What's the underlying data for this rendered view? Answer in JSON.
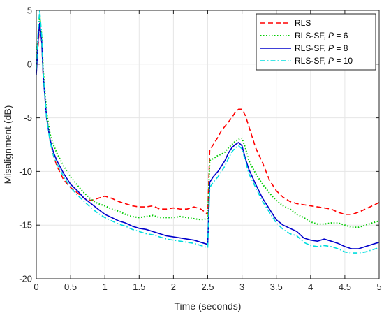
{
  "chart_data": {
    "type": "line",
    "xlabel": "Time (seconds)",
    "ylabel": "Misalignment (dB)",
    "xlim": [
      0,
      5
    ],
    "ylim": [
      -20,
      5
    ],
    "grid": true,
    "legend_position": "top-right",
    "x_ticks": [
      0,
      0.5,
      1,
      1.5,
      2,
      2.5,
      3,
      3.5,
      4,
      4.5,
      5
    ],
    "x_tick_labels": [
      "0",
      "0.5",
      "1",
      "1.5",
      "2",
      "2.5",
      "3",
      "3.5",
      "4",
      "4.5",
      "5"
    ],
    "y_ticks": [
      5,
      0,
      -5,
      -10,
      -15,
      -20
    ],
    "y_tick_labels": [
      "5",
      "0",
      "-5",
      "-10",
      "-15",
      "-20"
    ],
    "legend_entries": [
      {
        "prefix": "RLS",
        "param": "",
        "suffix": ""
      },
      {
        "prefix": "RLS-SF, ",
        "param": "P",
        "suffix": " = 6"
      },
      {
        "prefix": "RLS-SF, ",
        "param": "P",
        "suffix": " = 8"
      },
      {
        "prefix": "RLS-SF, ",
        "param": "P",
        "suffix": " = 10"
      }
    ],
    "series": [
      {
        "name": "RLS",
        "color": "#ff0000",
        "dash": "dashed",
        "x": [
          0,
          0.03,
          0.05,
          0.08,
          0.1,
          0.15,
          0.2,
          0.25,
          0.3,
          0.4,
          0.5,
          0.6,
          0.7,
          0.8,
          0.9,
          1.0,
          1.1,
          1.2,
          1.3,
          1.4,
          1.5,
          1.6,
          1.7,
          1.8,
          1.9,
          2.0,
          2.1,
          2.2,
          2.3,
          2.4,
          2.5,
          2.53,
          2.58,
          2.65,
          2.7,
          2.75,
          2.8,
          2.85,
          2.9,
          2.95,
          3.0,
          3.05,
          3.1,
          3.2,
          3.3,
          3.4,
          3.5,
          3.6,
          3.7,
          3.8,
          3.9,
          4.0,
          4.1,
          4.2,
          4.3,
          4.4,
          4.5,
          4.6,
          4.7,
          4.8,
          4.9,
          5.0
        ],
        "y": [
          -0.5,
          2.0,
          3.8,
          2.0,
          -1.0,
          -5.0,
          -7.0,
          -8.5,
          -9.5,
          -10.8,
          -11.5,
          -12.0,
          -12.5,
          -12.7,
          -12.5,
          -12.3,
          -12.5,
          -12.8,
          -13.0,
          -13.2,
          -13.3,
          -13.3,
          -13.2,
          -13.5,
          -13.5,
          -13.4,
          -13.5,
          -13.5,
          -13.3,
          -13.5,
          -14.0,
          -8.0,
          -7.5,
          -6.8,
          -6.2,
          -5.8,
          -5.4,
          -5.0,
          -4.5,
          -4.2,
          -4.2,
          -4.8,
          -5.8,
          -7.8,
          -9.2,
          -10.8,
          -11.8,
          -12.4,
          -12.8,
          -13.0,
          -13.1,
          -13.2,
          -13.3,
          -13.4,
          -13.5,
          -13.8,
          -14.0,
          -14.0,
          -13.8,
          -13.5,
          -13.2,
          -12.9
        ]
      },
      {
        "name": "RLS-SF, P = 6",
        "color": "#00cc00",
        "dash": "dotted",
        "x": [
          0,
          0.03,
          0.05,
          0.08,
          0.1,
          0.15,
          0.2,
          0.25,
          0.3,
          0.4,
          0.5,
          0.6,
          0.7,
          0.8,
          0.9,
          1.0,
          1.1,
          1.2,
          1.3,
          1.4,
          1.5,
          1.6,
          1.7,
          1.8,
          1.9,
          2.0,
          2.1,
          2.2,
          2.3,
          2.4,
          2.5,
          2.53,
          2.58,
          2.65,
          2.7,
          2.75,
          2.8,
          2.85,
          2.9,
          2.95,
          3.0,
          3.05,
          3.1,
          3.2,
          3.3,
          3.4,
          3.5,
          3.6,
          3.7,
          3.8,
          3.9,
          4.0,
          4.1,
          4.2,
          4.3,
          4.4,
          4.5,
          4.6,
          4.7,
          4.8,
          4.9,
          5.0
        ],
        "y": [
          0.0,
          3.0,
          4.5,
          2.5,
          -0.5,
          -4.5,
          -6.5,
          -7.5,
          -8.3,
          -9.5,
          -10.5,
          -11.3,
          -12.0,
          -12.6,
          -13.0,
          -13.2,
          -13.5,
          -13.7,
          -14.0,
          -14.2,
          -14.3,
          -14.2,
          -14.1,
          -14.3,
          -14.3,
          -14.3,
          -14.2,
          -14.3,
          -14.4,
          -14.5,
          -14.4,
          -9.0,
          -8.8,
          -8.5,
          -8.4,
          -8.2,
          -7.8,
          -7.5,
          -7.2,
          -7.0,
          -6.9,
          -7.8,
          -9.0,
          -10.2,
          -11.2,
          -12.0,
          -12.7,
          -13.2,
          -13.5,
          -14.0,
          -14.3,
          -14.7,
          -14.9,
          -14.9,
          -14.8,
          -14.8,
          -15.0,
          -15.2,
          -15.2,
          -15.0,
          -14.8,
          -14.6
        ]
      },
      {
        "name": "RLS-SF, P = 8",
        "color": "#0000cc",
        "dash": "solid",
        "x": [
          0,
          0.03,
          0.05,
          0.08,
          0.1,
          0.15,
          0.2,
          0.25,
          0.3,
          0.4,
          0.5,
          0.6,
          0.7,
          0.8,
          0.9,
          1.0,
          1.1,
          1.2,
          1.3,
          1.4,
          1.5,
          1.6,
          1.7,
          1.8,
          1.9,
          2.0,
          2.1,
          2.2,
          2.3,
          2.4,
          2.5,
          2.53,
          2.58,
          2.65,
          2.7,
          2.75,
          2.8,
          2.85,
          2.9,
          2.95,
          3.0,
          3.05,
          3.1,
          3.2,
          3.3,
          3.4,
          3.5,
          3.6,
          3.7,
          3.8,
          3.9,
          4.0,
          4.1,
          4.2,
          4.3,
          4.4,
          4.5,
          4.6,
          4.7,
          4.8,
          4.9,
          5.0
        ],
        "y": [
          -1.0,
          2.5,
          3.8,
          2.0,
          -1.0,
          -5.0,
          -7.0,
          -8.2,
          -9.0,
          -10.2,
          -11.2,
          -11.8,
          -12.5,
          -13.0,
          -13.5,
          -14.0,
          -14.3,
          -14.6,
          -14.8,
          -15.1,
          -15.3,
          -15.4,
          -15.6,
          -15.8,
          -16.0,
          -16.1,
          -16.2,
          -16.3,
          -16.4,
          -16.6,
          -16.8,
          -11.0,
          -10.5,
          -10.0,
          -9.5,
          -9.0,
          -8.3,
          -7.8,
          -7.5,
          -7.3,
          -7.6,
          -8.8,
          -9.8,
          -11.2,
          -12.5,
          -13.5,
          -14.5,
          -15.0,
          -15.3,
          -15.6,
          -16.2,
          -16.4,
          -16.5,
          -16.3,
          -16.5,
          -16.7,
          -17.0,
          -17.2,
          -17.2,
          -17.0,
          -16.8,
          -16.6
        ]
      },
      {
        "name": "RLS-SF, P = 10",
        "color": "#00dddd",
        "dash": "dashdot",
        "x": [
          0,
          0.03,
          0.05,
          0.08,
          0.1,
          0.15,
          0.2,
          0.25,
          0.3,
          0.4,
          0.5,
          0.6,
          0.7,
          0.8,
          0.9,
          1.0,
          1.1,
          1.2,
          1.3,
          1.4,
          1.5,
          1.6,
          1.7,
          1.8,
          1.9,
          2.0,
          2.1,
          2.2,
          2.3,
          2.4,
          2.5,
          2.53,
          2.58,
          2.65,
          2.7,
          2.75,
          2.8,
          2.85,
          2.9,
          2.95,
          3.0,
          3.05,
          3.1,
          3.2,
          3.3,
          3.4,
          3.5,
          3.6,
          3.7,
          3.8,
          3.9,
          4.0,
          4.1,
          4.2,
          4.3,
          4.4,
          4.5,
          4.6,
          4.7,
          4.8,
          4.9,
          5.0
        ],
        "y": [
          -0.5,
          3.5,
          5.0,
          2.5,
          -0.8,
          -5.0,
          -7.2,
          -8.5,
          -9.3,
          -10.5,
          -11.5,
          -12.2,
          -12.8,
          -13.4,
          -13.9,
          -14.3,
          -14.6,
          -14.9,
          -15.1,
          -15.4,
          -15.6,
          -15.8,
          -15.9,
          -16.1,
          -16.3,
          -16.4,
          -16.5,
          -16.6,
          -16.7,
          -16.9,
          -17.1,
          -11.5,
          -11.0,
          -10.5,
          -10.0,
          -9.5,
          -8.8,
          -8.2,
          -7.8,
          -7.6,
          -7.9,
          -9.0,
          -10.2,
          -11.5,
          -12.8,
          -13.8,
          -14.8,
          -15.4,
          -15.8,
          -16.0,
          -16.6,
          -16.9,
          -17.0,
          -16.9,
          -17.0,
          -17.2,
          -17.5,
          -17.6,
          -17.6,
          -17.5,
          -17.3,
          -17.1
        ]
      }
    ]
  }
}
